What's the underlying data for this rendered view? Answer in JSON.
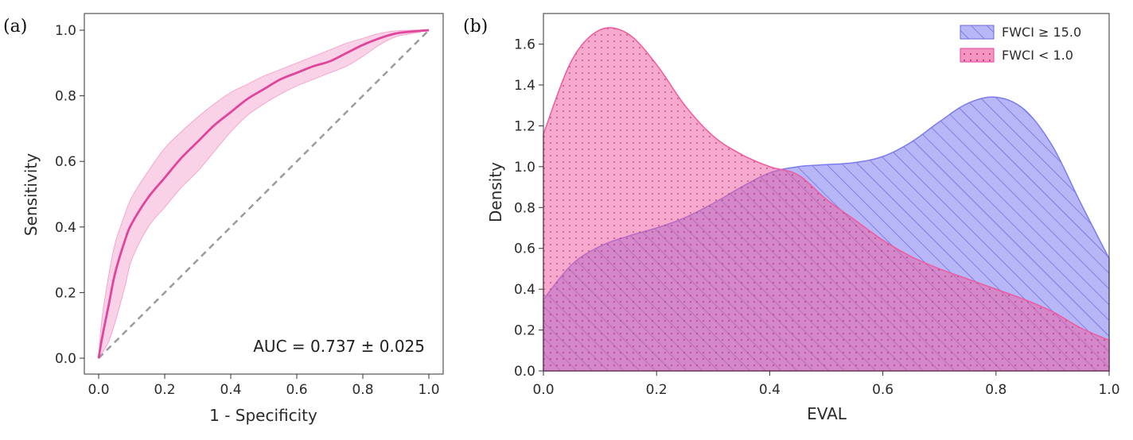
{
  "colors": {
    "roc_line": "#e0449b",
    "roc_band": "#f4a6cf",
    "diagonal": "#9a9aa0",
    "kde_high": "#7b7bf0",
    "kde_low": "#ef5a9e",
    "axis": "#333333"
  },
  "chart_data": [
    {
      "panel_label": "(a)",
      "type": "line",
      "title": "",
      "xlabel": "1 - Specificity",
      "ylabel": "Sensitivity",
      "xlim": [
        0.0,
        1.0
      ],
      "ylim": [
        0.0,
        1.0
      ],
      "xticks": [
        "0.0",
        "0.2",
        "0.4",
        "0.6",
        "0.8",
        "1.0"
      ],
      "yticks": [
        "0.0",
        "0.2",
        "0.4",
        "0.6",
        "0.8",
        "1.0"
      ],
      "grid": false,
      "annotation": "AUC = 0.737 ± 0.025",
      "series": [
        {
          "name": "mean ROC",
          "x": [
            0,
            0.01,
            0.03,
            0.05,
            0.08,
            0.1,
            0.15,
            0.2,
            0.25,
            0.3,
            0.35,
            0.4,
            0.45,
            0.5,
            0.55,
            0.6,
            0.65,
            0.7,
            0.75,
            0.8,
            0.85,
            0.9,
            0.95,
            1.0
          ],
          "y": [
            0,
            0.06,
            0.16,
            0.26,
            0.36,
            0.41,
            0.49,
            0.55,
            0.61,
            0.66,
            0.71,
            0.75,
            0.79,
            0.82,
            0.85,
            0.87,
            0.89,
            0.905,
            0.93,
            0.955,
            0.975,
            0.99,
            0.996,
            1.0
          ]
        },
        {
          "name": "band upper",
          "x": [
            0,
            0.01,
            0.03,
            0.05,
            0.08,
            0.1,
            0.15,
            0.2,
            0.25,
            0.3,
            0.35,
            0.4,
            0.45,
            0.5,
            0.55,
            0.6,
            0.65,
            0.7,
            0.75,
            0.8,
            0.85,
            0.9,
            0.95,
            1.0
          ],
          "y": [
            0,
            0.12,
            0.25,
            0.35,
            0.44,
            0.49,
            0.57,
            0.64,
            0.69,
            0.735,
            0.775,
            0.81,
            0.835,
            0.86,
            0.88,
            0.9,
            0.92,
            0.94,
            0.96,
            0.975,
            0.99,
            0.998,
            1.0,
            1.0
          ]
        },
        {
          "name": "band lower",
          "x": [
            0,
            0.01,
            0.03,
            0.05,
            0.08,
            0.1,
            0.15,
            0.2,
            0.25,
            0.3,
            0.35,
            0.4,
            0.45,
            0.5,
            0.55,
            0.6,
            0.65,
            0.7,
            0.75,
            0.8,
            0.85,
            0.9,
            0.95,
            1.0
          ],
          "y": [
            0,
            0.015,
            0.05,
            0.11,
            0.22,
            0.3,
            0.4,
            0.46,
            0.52,
            0.57,
            0.63,
            0.69,
            0.74,
            0.775,
            0.805,
            0.83,
            0.85,
            0.87,
            0.89,
            0.92,
            0.955,
            0.98,
            0.99,
            1.0
          ]
        },
        {
          "name": "chance",
          "x": [
            0,
            1
          ],
          "y": [
            0,
            1
          ]
        }
      ]
    },
    {
      "panel_label": "(b)",
      "type": "area",
      "title": "",
      "xlabel": "EVAL",
      "ylabel": "Density",
      "xlim": [
        0.0,
        1.0
      ],
      "ylim": [
        0.0,
        1.75
      ],
      "xticks": [
        "0.0",
        "0.2",
        "0.4",
        "0.6",
        "0.8",
        "1.0"
      ],
      "yticks": [
        "0.0",
        "0.2",
        "0.4",
        "0.6",
        "0.8",
        "1.0",
        "1.2",
        "1.4",
        "1.6"
      ],
      "grid": false,
      "legend_position": "top-right",
      "x": [
        0,
        0.05,
        0.1,
        0.15,
        0.2,
        0.25,
        0.3,
        0.35,
        0.4,
        0.45,
        0.5,
        0.55,
        0.6,
        0.65,
        0.7,
        0.75,
        0.8,
        0.85,
        0.9,
        0.95,
        1.0
      ],
      "series": [
        {
          "name": "FWCI ≥ 15.0",
          "values": [
            0.35,
            0.52,
            0.61,
            0.66,
            0.7,
            0.75,
            0.82,
            0.9,
            0.97,
            1.0,
            1.01,
            1.02,
            1.05,
            1.12,
            1.22,
            1.31,
            1.34,
            1.28,
            1.1,
            0.82,
            0.55
          ]
        },
        {
          "name": "FWCI < 1.0",
          "values": [
            1.16,
            1.52,
            1.67,
            1.65,
            1.5,
            1.3,
            1.15,
            1.06,
            1.0,
            0.96,
            0.84,
            0.74,
            0.64,
            0.56,
            0.5,
            0.45,
            0.4,
            0.35,
            0.29,
            0.21,
            0.15
          ]
        }
      ]
    }
  ]
}
